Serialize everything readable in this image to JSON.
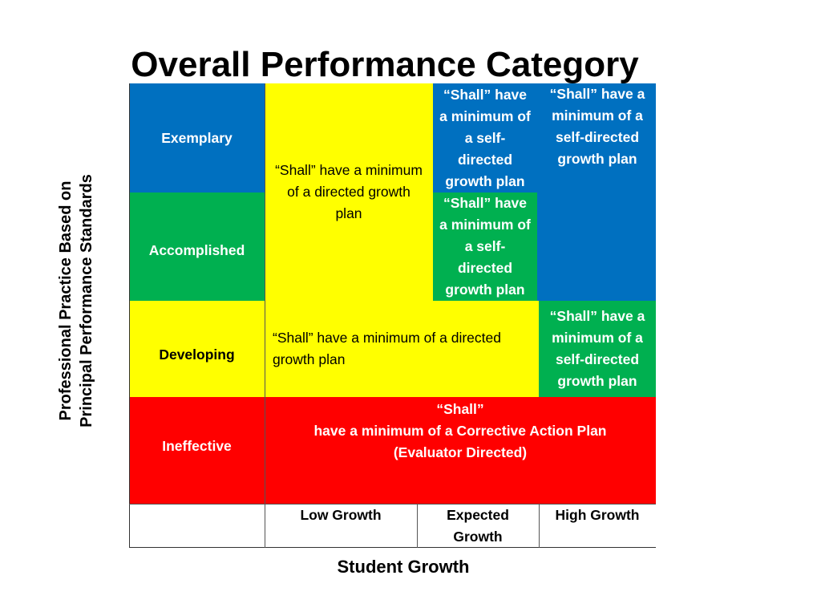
{
  "title": "Overall Performance Category",
  "ylabel_line1": "Professional Practice Based on",
  "ylabel_line2": "Principal Performance Standards",
  "xlabel": "Student Growth",
  "rows": {
    "exemplary": "Exemplary",
    "accomplished": "Accomplished",
    "developing": "Developing",
    "ineffective": "Ineffective"
  },
  "columns": {
    "low": "Low Growth",
    "expected": "Expected Growth",
    "high": "High Growth"
  },
  "cells": {
    "directed_big": "“Shall” have a minimum of a directed growth plan",
    "exemplary_expected": "“Shall” have a minimum of a self-directed growth plan",
    "exemplary_high": "“Shall” have a minimum of a self-directed growth plan",
    "accomplished_expected": "“Shall” have a minimum of a self-directed growth plan",
    "developing_low_expected": "“Shall” have a minimum of a directed growth plan",
    "developing_high": "“Shall” have a minimum of a self-directed growth plan",
    "ineffective_line1": "“Shall”",
    "ineffective_line2": "have a minimum of a Corrective Action Plan",
    "ineffective_line3": "(Evaluator Directed)"
  },
  "colors": {
    "blue": "#0070c0",
    "green": "#00b050",
    "yellow": "#ffff00",
    "red": "#ff0000"
  }
}
